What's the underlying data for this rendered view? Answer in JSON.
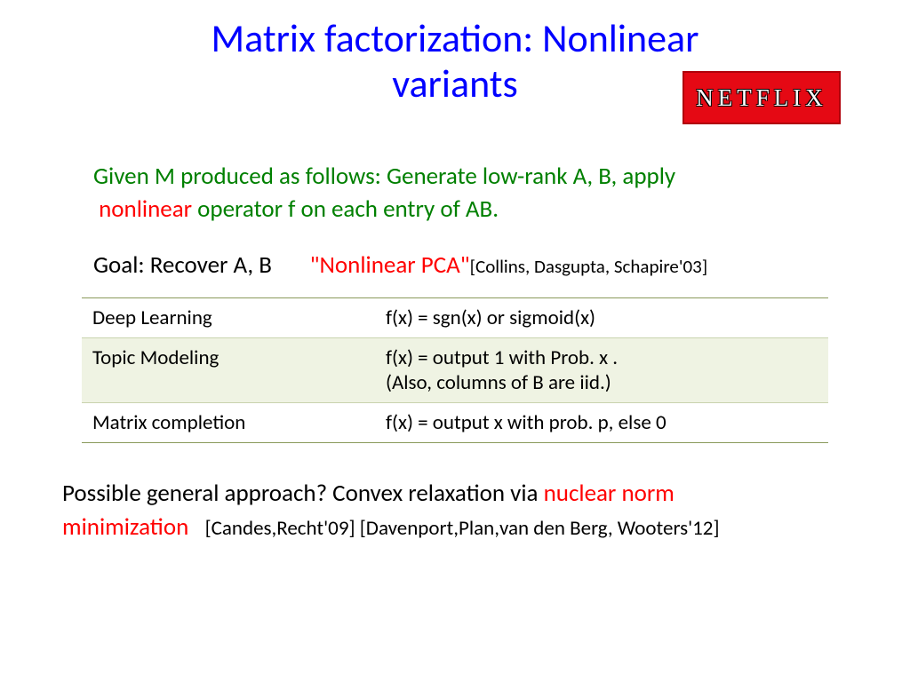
{
  "title_line1": "Matrix factorization: Nonlinear",
  "title_line2": "variants",
  "logo_text": "NETFLIX",
  "intro_part1": "Given M produced as follows: Generate low-rank A, B, apply",
  "intro_nonlinear": "nonlinear",
  "intro_part2": " operator f on each entry of AB.",
  "goal_label": "Goal: Recover A, B",
  "goal_pca": "\"Nonlinear PCA\"",
  "goal_cite": "[Collins, Dasgupta, Schapire'03]",
  "table": {
    "rows": [
      {
        "left": "Deep Learning",
        "right": "f(x) = sgn(x) or sigmoid(x)",
        "shaded": false
      },
      {
        "left": "Topic Modeling",
        "right": "f(x) = output 1 with Prob.  x .\n(Also, columns of B are iid.)",
        "shaded": true
      },
      {
        "left": "Matrix completion",
        "right": "f(x) = output x with prob. p, else 0",
        "shaded": false
      }
    ]
  },
  "closing_part1": "Possible general approach? Convex relaxation via ",
  "closing_red": "nuclear norm minimization",
  "closing_cite": "[Candes,Recht'09] [Davenport,Plan,van den Berg, Wooters'12]",
  "colors": {
    "title": "#0000ff",
    "green": "#008000",
    "red": "#ff0000",
    "logo_bg": "#e50914",
    "table_border": "#8a9a5b",
    "table_shade": "#eff3e3"
  }
}
